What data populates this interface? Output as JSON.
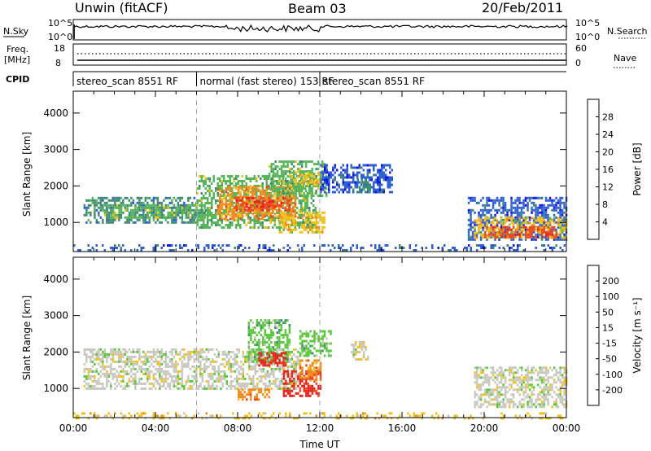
{
  "header": {
    "station": "Unwin (fitACF)",
    "beam": "Beam 03",
    "date": "20/Feb/2011"
  },
  "panels": {
    "nsky": {
      "label": "N.Sky",
      "left_ticks": [
        "10^5",
        "10^0"
      ],
      "right_ticks": [
        "10^5",
        "10^0"
      ],
      "right_label": "N.Search"
    },
    "freq": {
      "label_line1": "Freq.",
      "label_line2": "[MHz]",
      "left_ticks": [
        "18",
        "8"
      ],
      "right_ticks": [
        "60",
        "0"
      ],
      "right_label": "Nave"
    },
    "cpid": {
      "label": "CPID",
      "segments": [
        {
          "label": "stereo_scan 8551 RF",
          "start_hour": 0.0,
          "end_hour": 6.0
        },
        {
          "label": "normal (fast stereo) 153 RF",
          "start_hour": 6.0,
          "end_hour": 12.0
        },
        {
          "label": "stereo_scan 8551 RF",
          "start_hour": 12.0,
          "end_hour": 24.0
        }
      ]
    }
  },
  "chart_data": [
    {
      "type": "heatmap",
      "name": "power",
      "ylabel": "Slant Range [km]",
      "xlabel": "Time UT",
      "y_ticks": [
        "1000",
        "2000",
        "3000",
        "4000"
      ],
      "y_tick_values": [
        1000,
        2000,
        3000,
        4000
      ],
      "ylim": [
        200,
        4600
      ],
      "xlim": [
        0,
        24
      ],
      "cbar_label": "Power [dB]",
      "cbar_ticks": [
        "4",
        "8",
        "12",
        "16",
        "20",
        "24",
        "28"
      ],
      "cbar_colors": [
        "#1414e6",
        "#2f60d0",
        "#3f8a73",
        "#58b65a",
        "#f0c21a",
        "#f38a1c",
        "#ec4b20",
        "#e8211b"
      ],
      "regions": [
        {
          "t0": 0.5,
          "t1": 6.0,
          "r0": 1000,
          "r1": 1700,
          "c": 2
        },
        {
          "t0": 1.5,
          "t1": 6.5,
          "r0": 1150,
          "r1": 1500,
          "c": 3
        },
        {
          "t0": 6.0,
          "t1": 11.8,
          "r0": 850,
          "r1": 2300,
          "c": 3
        },
        {
          "t0": 7.0,
          "t1": 10.8,
          "r0": 1100,
          "r1": 2000,
          "c": 5
        },
        {
          "t0": 7.8,
          "t1": 10.5,
          "r0": 1300,
          "r1": 1700,
          "c": 6
        },
        {
          "t0": 8.4,
          "t1": 10.2,
          "r0": 1400,
          "r1": 1600,
          "c": 7
        },
        {
          "t0": 9.5,
          "t1": 12.3,
          "r0": 1700,
          "r1": 2700,
          "c": 3
        },
        {
          "t0": 10.0,
          "t1": 12.2,
          "r0": 750,
          "r1": 1300,
          "c": 4
        },
        {
          "t0": 10.5,
          "t1": 12.0,
          "r0": 2000,
          "r1": 2400,
          "c": 4
        },
        {
          "t0": 12.0,
          "t1": 15.5,
          "r0": 1800,
          "r1": 2600,
          "c": 1
        },
        {
          "t0": 13.8,
          "t1": 14.4,
          "r0": 1800,
          "r1": 2200,
          "c": 2
        },
        {
          "t0": 19.2,
          "t1": 24.0,
          "r0": 500,
          "r1": 1700,
          "c": 1
        },
        {
          "t0": 19.5,
          "t1": 24.0,
          "r0": 550,
          "r1": 1150,
          "c": 4
        },
        {
          "t0": 20.0,
          "t1": 23.5,
          "r0": 600,
          "r1": 900,
          "c": 6
        },
        {
          "t0": 0.0,
          "t1": 24.0,
          "r0": 200,
          "r1": 400,
          "c": 1
        }
      ]
    },
    {
      "type": "heatmap",
      "name": "velocity",
      "ylabel": "Slant Range [km]",
      "xlabel": "Time UT",
      "y_ticks": [
        "1000",
        "2000",
        "3000",
        "4000"
      ],
      "y_tick_values": [
        1000,
        2000,
        3000,
        4000
      ],
      "ylim": [
        200,
        4600
      ],
      "xlim": [
        0,
        24
      ],
      "x_ticks": [
        "00:00",
        "04:00",
        "08:00",
        "12:00",
        "16:00",
        "20:00",
        "00:00"
      ],
      "x_tick_values": [
        0,
        4,
        8,
        12,
        16,
        20,
        24
      ],
      "cbar_label": "Velocity [m s⁻¹]",
      "cbar_ticks": [
        "-200",
        "-100",
        "-50",
        "-15",
        "15",
        "50",
        "100",
        "200"
      ],
      "cbar_colors": [
        "#e8211b",
        "#ec4b20",
        "#f38a1c",
        "#f0c21a",
        "#c8c8c0",
        "#58c83a",
        "#3f8a73",
        "#2f60d0",
        "#1414e6"
      ],
      "regions": [
        {
          "t0": 0.5,
          "t1": 11.0,
          "r0": 1000,
          "r1": 2100,
          "c": 4
        },
        {
          "t0": 8.5,
          "t1": 10.5,
          "r0": 1700,
          "r1": 2900,
          "c": 5
        },
        {
          "t0": 9.0,
          "t1": 10.3,
          "r0": 1600,
          "r1": 2000,
          "c": 0
        },
        {
          "t0": 10.2,
          "t1": 12.0,
          "r0": 800,
          "r1": 1500,
          "c": 0
        },
        {
          "t0": 11.0,
          "t1": 12.0,
          "r0": 1200,
          "r1": 1800,
          "c": 2
        },
        {
          "t0": 8.0,
          "t1": 9.5,
          "r0": 700,
          "r1": 1000,
          "c": 2
        },
        {
          "t0": 11.0,
          "t1": 12.5,
          "r0": 1900,
          "r1": 2600,
          "c": 5
        },
        {
          "t0": 13.5,
          "t1": 14.3,
          "r0": 1800,
          "r1": 2300,
          "c": 4
        },
        {
          "t0": 19.5,
          "t1": 24.0,
          "r0": 500,
          "r1": 1600,
          "c": 4
        },
        {
          "t0": 0.0,
          "t1": 24.0,
          "r0": 200,
          "r1": 350,
          "c": 3
        }
      ]
    }
  ]
}
